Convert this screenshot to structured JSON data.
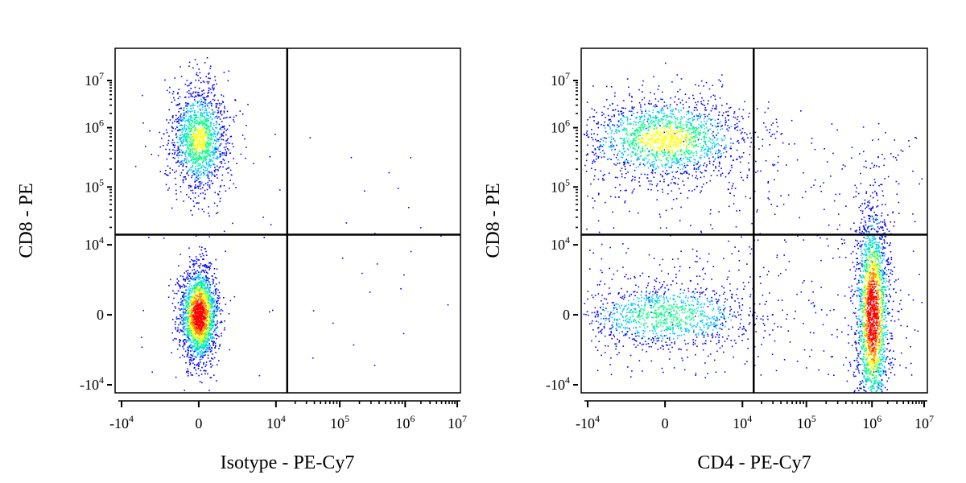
{
  "chart_data": [
    {
      "type": "scatter",
      "subtype": "flow-cytometry density dot plot",
      "xlabel": "Isotype - PE-Cy7",
      "ylabel": "CD8 - PE",
      "x_scale": "biexponential",
      "y_scale": "biexponential",
      "x_ticks": [
        "-10^4",
        "0",
        "10^4",
        "10^5",
        "10^6",
        "10^7"
      ],
      "y_ticks": [
        "-10^4",
        "0",
        "10^4",
        "10^5",
        "10^6",
        "10^7"
      ],
      "quadrant_gate": {
        "x": 15000,
        "y": 15000
      },
      "density_colors": [
        "#0000ff",
        "#00c8ff",
        "#00ff80",
        "#ffff00",
        "#ff8000",
        "#ff0000"
      ],
      "populations": [
        {
          "x_center": 0,
          "y_center": 0,
          "relative_density": 1.0
        },
        {
          "x_center": 0,
          "y_center": 650000,
          "relative_density": 0.55
        }
      ]
    },
    {
      "type": "scatter",
      "subtype": "flow-cytometry density dot plot",
      "xlabel": "CD4 - PE-Cy7",
      "ylabel": "CD8 - PE",
      "x_scale": "biexponential",
      "y_scale": "biexponential",
      "x_ticks": [
        "-10^4",
        "0",
        "10^4",
        "10^5",
        "10^6",
        "10^7"
      ],
      "y_ticks": [
        "-10^4",
        "0",
        "10^4",
        "10^5",
        "10^6",
        "10^7"
      ],
      "quadrant_gate": {
        "x": 15000,
        "y": 15000
      },
      "density_colors": [
        "#0000ff",
        "#00c8ff",
        "#00ff80",
        "#ffff00",
        "#ff8000",
        "#ff0000"
      ],
      "populations": [
        {
          "x_center": 1000000,
          "y_center": 0,
          "relative_density": 1.0
        },
        {
          "x_center": 0,
          "y_center": 650000,
          "relative_density": 0.6
        },
        {
          "x_center": 0,
          "y_center": 0,
          "relative_density": 0.45
        }
      ]
    }
  ]
}
